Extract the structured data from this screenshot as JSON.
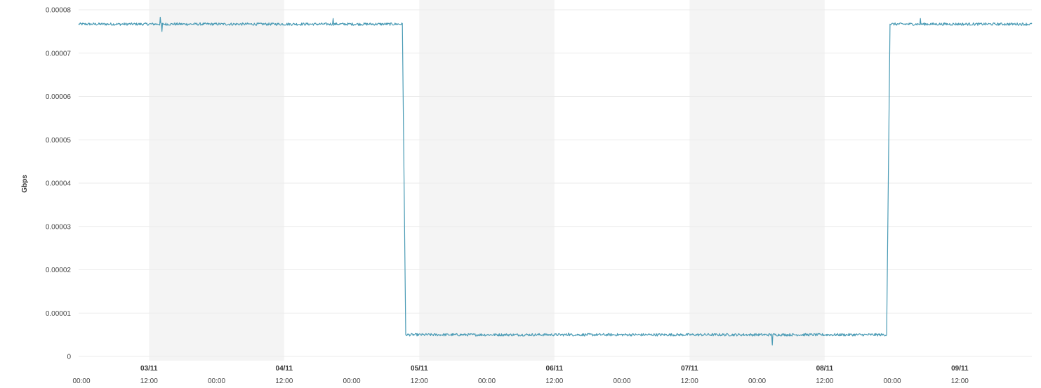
{
  "chart_data": {
    "type": "line",
    "title": "",
    "ylabel": "Gbps",
    "xlabel": "",
    "ylim": [
      0,
      8e-05
    ],
    "yticks": [
      "0",
      "0.00001",
      "0.00002",
      "0.00003",
      "0.00004",
      "0.00005",
      "0.00006",
      "0.00007",
      "0.00008"
    ],
    "ytick_values": [
      0,
      1e-05,
      2e-05,
      3e-05,
      4e-05,
      5e-05,
      6e-05,
      7e-05,
      8e-05
    ],
    "xlim_hours": [
      -0.5,
      168.8
    ],
    "x_time_labels": [
      {
        "hour": 0,
        "label": "00:00"
      },
      {
        "hour": 12,
        "label": "12:00",
        "date": "03/11"
      },
      {
        "hour": 24,
        "label": "00:00"
      },
      {
        "hour": 36,
        "label": "12:00",
        "date": "04/11"
      },
      {
        "hour": 48,
        "label": "00:00"
      },
      {
        "hour": 60,
        "label": "12:00",
        "date": "05/11"
      },
      {
        "hour": 72,
        "label": "00:00"
      },
      {
        "hour": 84,
        "label": "12:00",
        "date": "06/11"
      },
      {
        "hour": 96,
        "label": "00:00"
      },
      {
        "hour": 108,
        "label": "12:00",
        "date": "07/11"
      },
      {
        "hour": 120,
        "label": "00:00"
      },
      {
        "hour": 132,
        "label": "12:00",
        "date": "08/11"
      },
      {
        "hour": 144,
        "label": "00:00"
      },
      {
        "hour": 156,
        "label": "12:00",
        "date": "09/11"
      }
    ],
    "shaded_bands_hours": [
      [
        12,
        36
      ],
      [
        60,
        84
      ],
      [
        108,
        132
      ]
    ],
    "grid": true,
    "series": [
      {
        "color": "#4a9bb5",
        "points": [
          [
            -0.5,
            7.67e-05
          ],
          [
            57,
            7.67e-05
          ],
          [
            57.6,
            5e-06
          ],
          [
            143,
            5e-06
          ],
          [
            143.6,
            7.67e-05
          ],
          [
            168.8,
            7.67e-05
          ]
        ],
        "noise": 3e-07,
        "spikes": [
          [
            14,
            7.83e-05
          ],
          [
            14.3,
            7.5e-05
          ],
          [
            44.7,
            7.8e-05
          ],
          [
            86.5,
            5.4e-06
          ],
          [
            122.7,
            2.6e-06
          ],
          [
            149,
            7.8e-05
          ]
        ]
      }
    ]
  },
  "colors": {
    "line": "#4a9bb5",
    "band": "#f4f4f4",
    "grid": "#ebebeb"
  }
}
